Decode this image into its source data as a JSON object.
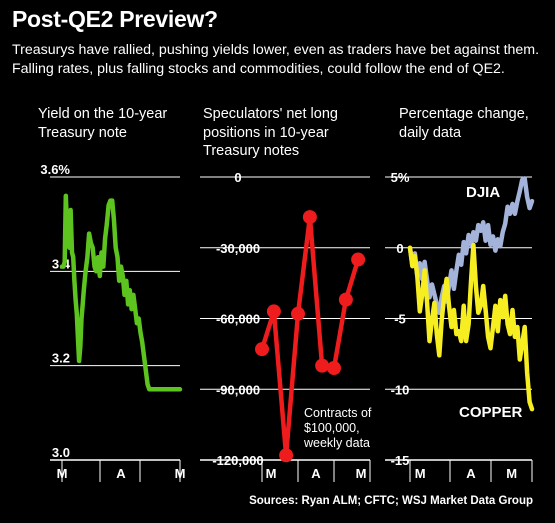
{
  "header": {
    "title": "Post-QE2 Preview?",
    "subtitle": "Treasurys have rallied, pushing yields lower, even as traders have bet against them. Falling rates, plus falling stocks and commodities, could follow the end of QE2."
  },
  "source": "Sources: Ryan ALM; CFTC; WSJ Market Data Group",
  "colors": {
    "green": "#5dc31e",
    "red": "#ee1c1c",
    "djia": "#a3b3d9",
    "copper": "#f7ee22",
    "background": "#000000"
  },
  "chart_data": [
    {
      "type": "line",
      "title": "Yield on the 10-year Treasury note",
      "ylim": [
        3.0,
        3.6
      ],
      "y_ticks": [
        3.0,
        3.2,
        3.4,
        3.6
      ],
      "y_tick_labels": [
        "3.0",
        "3.2",
        "3.4",
        "3.6%"
      ],
      "x_ticks": [
        "M",
        "A",
        "M"
      ],
      "x_tick_positions": [
        0,
        1,
        2
      ],
      "xlim": [
        0,
        2
      ],
      "grid": true,
      "series": [
        {
          "color": "#5dc31e",
          "x": [
            0.0,
            0.025,
            0.045,
            0.065,
            0.085,
            0.105,
            0.125,
            0.145,
            0.17,
            0.19,
            0.21,
            0.23,
            0.25,
            0.27,
            0.29,
            0.31,
            0.33,
            0.35,
            0.37,
            0.4,
            0.43,
            0.46,
            0.49,
            0.52,
            0.55,
            0.58,
            0.61,
            0.64,
            0.67,
            0.7,
            0.73,
            0.76,
            0.79,
            0.82,
            0.85,
            0.88,
            0.91,
            0.94,
            0.97,
            1.0,
            1.03,
            1.06,
            1.09,
            1.12,
            1.15,
            1.18,
            1.21,
            1.24,
            1.27,
            1.3,
            1.33,
            1.36,
            1.39,
            1.42,
            1.45,
            1.48,
            1.51,
            1.54,
            1.57,
            1.6,
            1.63,
            1.66,
            1.69,
            1.72,
            1.75,
            1.78,
            1.81,
            1.84,
            1.87,
            1.9,
            1.93,
            1.96,
            2.0
          ],
          "y": [
            3.41,
            3.41,
            3.42,
            3.56,
            3.5,
            3.52,
            3.45,
            3.53,
            3.44,
            3.43,
            3.38,
            3.34,
            3.31,
            3.26,
            3.21,
            3.24,
            3.3,
            3.33,
            3.36,
            3.4,
            3.43,
            3.48,
            3.46,
            3.45,
            3.41,
            3.4,
            3.43,
            3.39,
            3.44,
            3.41,
            3.47,
            3.5,
            3.54,
            3.55,
            3.55,
            3.51,
            3.45,
            3.43,
            3.38,
            3.41,
            3.39,
            3.35,
            3.38,
            3.33,
            3.36,
            3.32,
            3.35,
            3.32,
            3.29,
            3.3,
            3.27,
            3.25,
            3.22,
            3.19,
            3.16,
            3.15,
            3.15,
            3.15,
            3.15,
            3.15,
            3.15,
            3.15,
            3.15,
            3.15,
            3.15,
            3.15,
            3.15,
            3.15,
            3.15,
            3.15,
            3.15,
            3.15,
            3.15
          ]
        }
      ]
    },
    {
      "type": "line",
      "title": "Speculators' net long positions in 10-year Treasury notes",
      "ylim": [
        -120000,
        0
      ],
      "y_ticks": [
        0,
        -30000,
        -60000,
        -90000,
        -120000
      ],
      "y_tick_labels": [
        "0",
        "-30,000",
        "-60,000",
        "-90,000",
        "-120,000"
      ],
      "x_ticks": [
        "M",
        "A",
        "M"
      ],
      "x_tick_positions": [
        0.25,
        1.5,
        2.75
      ],
      "xlim": [
        0,
        3
      ],
      "grid": true,
      "annotation": "Contracts of $100,000, weekly data",
      "series": [
        {
          "color": "#ee1c1c",
          "marker": "circle",
          "x": [
            0,
            0.33,
            0.67,
            1.0,
            1.33,
            1.67,
            2.0,
            2.33,
            2.67
          ],
          "y": [
            -73000,
            -57000,
            -118000,
            -58000,
            -17000,
            -80000,
            -81000,
            -52000,
            -35000
          ]
        }
      ]
    },
    {
      "type": "line",
      "title": "Percentage change, daily data",
      "ylim": [
        -15,
        5
      ],
      "y_ticks": [
        5,
        0,
        -5,
        -10,
        -15
      ],
      "y_tick_labels": [
        "5%",
        "0",
        "-5",
        "-10",
        "-15"
      ],
      "x_ticks": [
        "M",
        "A",
        "M"
      ],
      "x_tick_positions": [
        0.25,
        1.5,
        2.5
      ],
      "xlim": [
        0,
        3
      ],
      "grid": true,
      "series": [
        {
          "name": "DJIA",
          "color": "#a3b3d9",
          "x": [
            0,
            0.06,
            0.12,
            0.18,
            0.24,
            0.3,
            0.36,
            0.42,
            0.48,
            0.54,
            0.6,
            0.66,
            0.72,
            0.78,
            0.84,
            0.9,
            0.96,
            1.02,
            1.08,
            1.14,
            1.2,
            1.26,
            1.32,
            1.38,
            1.44,
            1.5,
            1.56,
            1.62,
            1.68,
            1.74,
            1.8,
            1.86,
            1.92,
            1.98,
            2.04,
            2.1,
            2.16,
            2.22,
            2.28,
            2.34,
            2.4,
            2.46,
            2.52,
            2.58,
            2.64,
            2.7,
            2.76,
            2.82,
            2.88,
            2.94,
            3.0
          ],
          "y": [
            0,
            -1.3,
            -0.4,
            -2,
            -1.1,
            -2.2,
            -1,
            -2.3,
            -3.5,
            -2.6,
            -3.3,
            -4,
            -4.6,
            -3.5,
            -2.7,
            -3.8,
            -2.7,
            -1.6,
            -2.9,
            -1.6,
            -0.5,
            -1.2,
            0.4,
            -0.4,
            0.9,
            0.2,
            1.1,
            0.5,
            1.6,
            1.2,
            1.8,
            0.5,
            1.6,
            0.2,
            0.8,
            -0.2,
            0.6,
            0.1,
            1.1,
            1.7,
            2.9,
            2.4,
            3.1,
            2.4,
            3.3,
            4,
            4.8,
            4.9,
            3.6,
            2.8,
            3.3
          ]
        },
        {
          "name": "COPPER",
          "color": "#f7ee22",
          "x": [
            0,
            0.06,
            0.12,
            0.18,
            0.24,
            0.3,
            0.36,
            0.42,
            0.48,
            0.54,
            0.6,
            0.66,
            0.72,
            0.78,
            0.84,
            0.9,
            0.96,
            1.02,
            1.08,
            1.14,
            1.2,
            1.26,
            1.32,
            1.38,
            1.44,
            1.5,
            1.56,
            1.62,
            1.68,
            1.74,
            1.8,
            1.86,
            1.92,
            1.98,
            2.04,
            2.1,
            2.16,
            2.22,
            2.28,
            2.34,
            2.4,
            2.46,
            2.52,
            2.58,
            2.64,
            2.7,
            2.76,
            2.82,
            2.88,
            2.94,
            3.0
          ],
          "y": [
            0,
            -1.3,
            -0.6,
            -2,
            -4.5,
            -3.3,
            -1.6,
            -3.9,
            -6.6,
            -5.1,
            -3.9,
            -6.1,
            -7.6,
            -5.1,
            -3.4,
            -2.2,
            -4.1,
            -5.6,
            -4.4,
            -6.1,
            -5.9,
            -6.6,
            -4.1,
            -6.6,
            -5.4,
            -2.4,
            0.2,
            -2.7,
            -4.6,
            -4.1,
            -2.7,
            -4.4,
            -6.3,
            -7.1,
            -5.6,
            -4.1,
            -5.9,
            -3.7,
            -4.9,
            -3.4,
            -5.4,
            -6.1,
            -4.4,
            -6.3,
            -5.6,
            -7.9,
            -6.8,
            -5.6,
            -8.8,
            -10.9,
            -11.4
          ]
        }
      ]
    }
  ]
}
